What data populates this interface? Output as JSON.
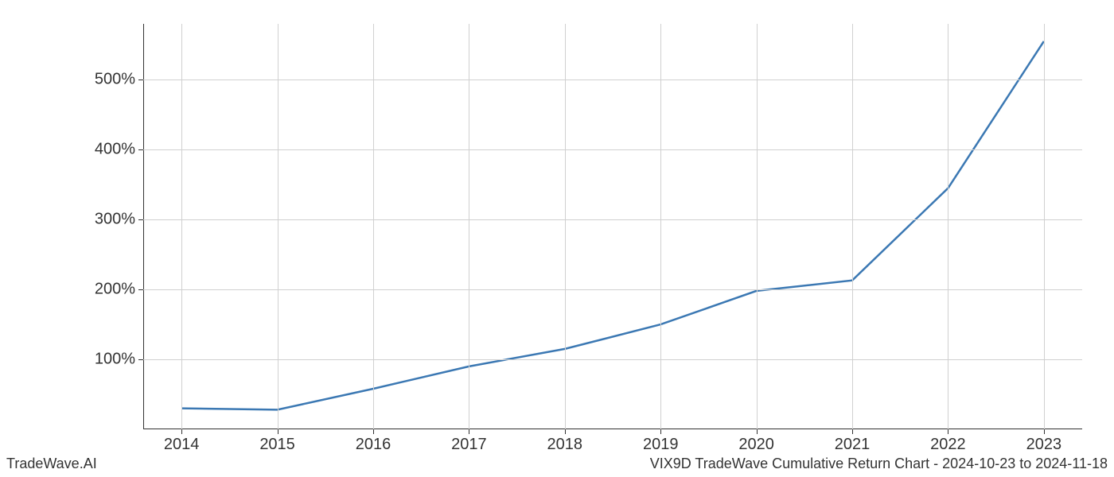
{
  "chart": {
    "type": "line",
    "x_labels": [
      "2014",
      "2015",
      "2016",
      "2017",
      "2018",
      "2019",
      "2020",
      "2021",
      "2022",
      "2023"
    ],
    "x_values": [
      2014,
      2015,
      2016,
      2017,
      2018,
      2019,
      2020,
      2021,
      2022,
      2023
    ],
    "y_values": [
      30,
      28,
      58,
      90,
      115,
      150,
      198,
      213,
      345,
      555
    ],
    "xlim": [
      2013.6,
      2023.4
    ],
    "ylim": [
      0,
      580
    ],
    "y_ticks": [
      100,
      200,
      300,
      400,
      500
    ],
    "y_tick_labels": [
      "100%",
      "200%",
      "300%",
      "400%",
      "500%"
    ],
    "line_color": "#3b78b3",
    "line_width": 2.5,
    "background_color": "#ffffff",
    "grid_color": "#d0d0d0",
    "axis_color": "#333333",
    "tick_fontsize": 20,
    "footer_fontsize": 18
  },
  "footer": {
    "left": "TradeWave.AI",
    "right": "VIX9D TradeWave Cumulative Return Chart - 2024-10-23 to 2024-11-18"
  }
}
